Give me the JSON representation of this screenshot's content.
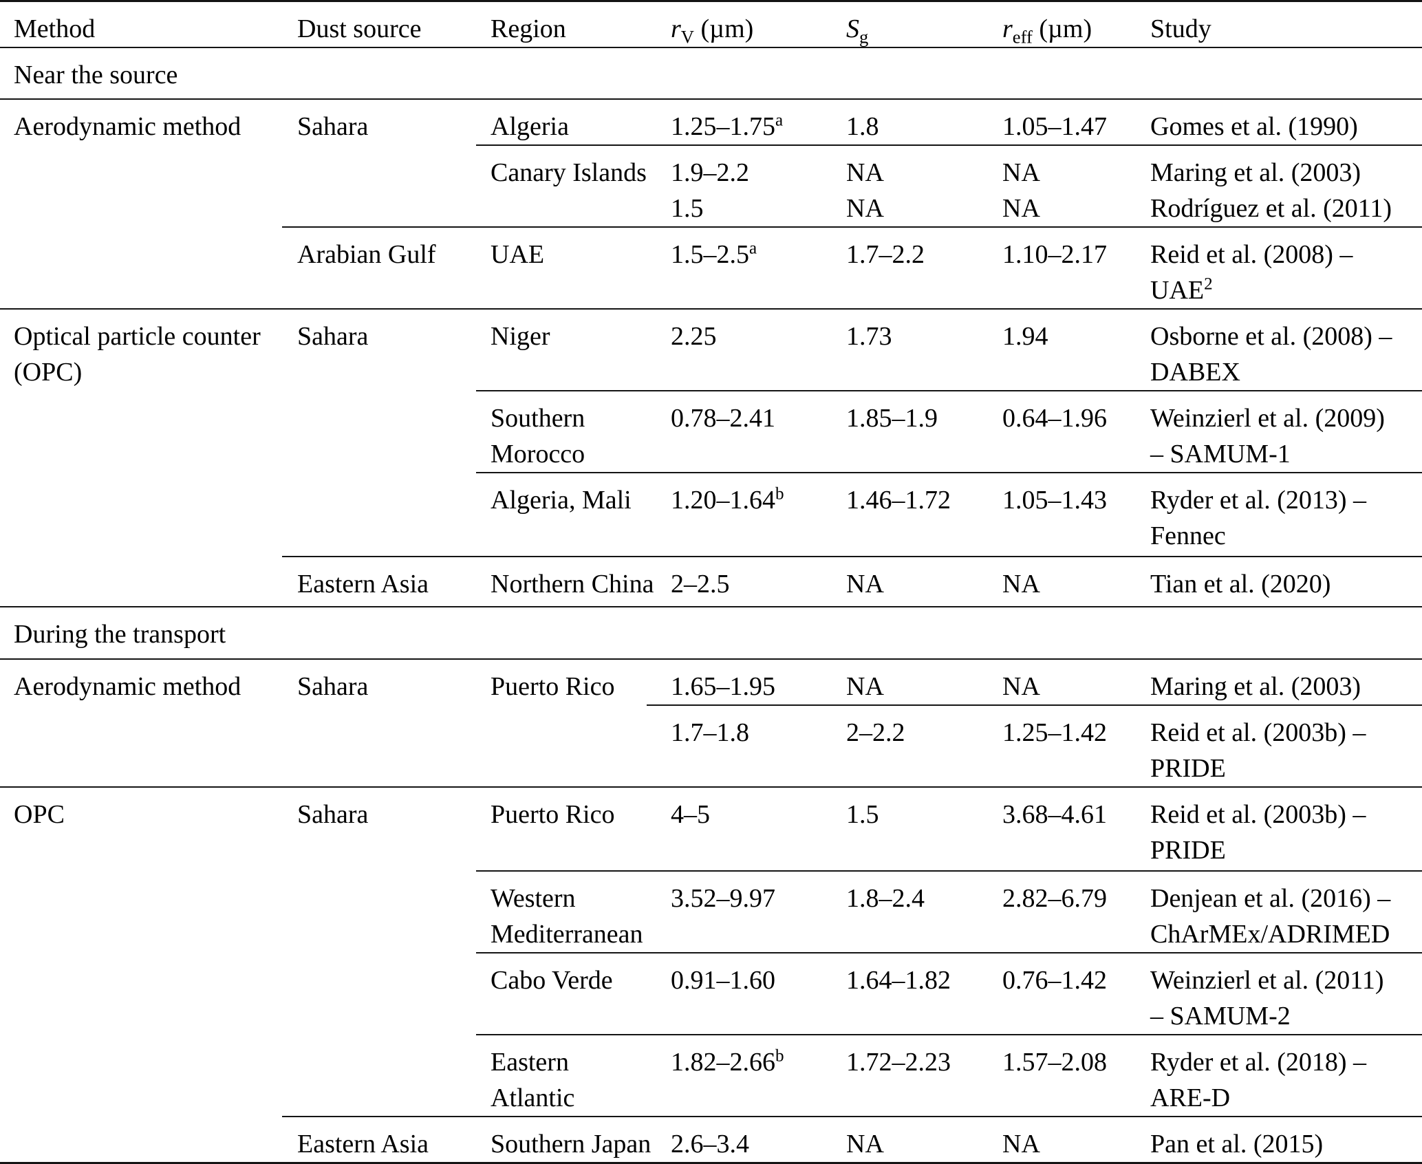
{
  "headers": {
    "method": "Method",
    "dust": "Dust source",
    "region": "Region",
    "rv_sym": "r",
    "rv_sub": "V",
    "rv_unit": " (µm)",
    "sg_sym": "S",
    "sg_sub": "g",
    "reff_sym": "r",
    "reff_sub": "eff",
    "reff_unit": " (µm)",
    "study": "Study"
  },
  "sections": {
    "near_the_source": "Near the source",
    "during_the_transport": "During the transport"
  },
  "rows": {
    "algeria": {
      "method": "Aerodynamic method",
      "dust": "Sahara",
      "region": "Algeria",
      "rv": "1.25–1.75",
      "rv_sup": "a",
      "sg": "1.8",
      "reff": "1.05–1.47",
      "study": "Gomes et al. (1990)"
    },
    "canary": {
      "region": "Canary Islands",
      "rv1": "1.9–2.2",
      "rv2": "1.5",
      "sg1": "NA",
      "sg2": "NA",
      "reff1": "NA",
      "reff2": "NA",
      "study1": "Maring et al. (2003)",
      "study2": "Rodríguez et al. (2011)"
    },
    "uae": {
      "dust": "Arabian Gulf",
      "region": "UAE",
      "rv": "1.5–2.5",
      "rv_sup": "a",
      "sg": "1.7–2.2",
      "reff": "1.10–2.17",
      "study1": "Reid et al. (2008) –",
      "study2": "UAE",
      "study2_sup": "2"
    },
    "niger": {
      "method1": "Optical particle counter",
      "method2": "(OPC)",
      "dust": "Sahara",
      "region": "Niger",
      "rv": "2.25",
      "sg": "1.73",
      "reff": "1.94",
      "study1": "Osborne et al. (2008) –",
      "study2": "DABEX"
    },
    "morocco": {
      "region1": "Southern",
      "region2": "Morocco",
      "rv": "0.78–2.41",
      "sg": "1.85–1.9",
      "reff": "0.64–1.96",
      "study1": "Weinzierl et al. (2009)",
      "study2": "– SAMUM-1"
    },
    "mali": {
      "region": "Algeria, Mali",
      "rv": "1.20–1.64",
      "rv_sup": "b",
      "sg": "1.46–1.72",
      "reff": "1.05–1.43",
      "study1": "Ryder et al. (2013) –",
      "study2": "Fennec"
    },
    "nchina": {
      "dust": "Eastern Asia",
      "region": "Northern China",
      "rv": "2–2.5",
      "sg": "NA",
      "reff": "NA",
      "study": "Tian et al. (2020)"
    },
    "pr_maring": {
      "method": "Aerodynamic method",
      "dust": "Sahara",
      "region": "Puerto Rico",
      "rv": "1.65–1.95",
      "sg": "NA",
      "reff": "NA",
      "study": "Maring et al. (2003)"
    },
    "pr_pride": {
      "rv": "1.7–1.8",
      "sg": "2–2.2",
      "reff": "1.25–1.42",
      "study1": "Reid et al. (2003b) –",
      "study2": "PRIDE"
    },
    "pr_opc": {
      "method": "OPC",
      "dust": "Sahara",
      "region": "Puerto Rico",
      "rv": "4–5",
      "sg": "1.5",
      "reff": "3.68–4.61",
      "study1": "Reid et al. (2003b) –",
      "study2": "PRIDE"
    },
    "wmed": {
      "region1": "Western",
      "region2": "Mediterranean",
      "rv": "3.52–9.97",
      "sg": "1.8–2.4",
      "reff": "2.82–6.79",
      "study1": "Denjean et al. (2016) –",
      "study2": "ChArMEx/ADRIMED"
    },
    "cabo": {
      "region": "Cabo Verde",
      "rv": "0.91–1.60",
      "sg": "1.64–1.82",
      "reff": "0.76–1.42",
      "study1": "Weinzierl et al. (2011)",
      "study2": "– SAMUM-2"
    },
    "eatl": {
      "region1": "Eastern",
      "region2": "Atlantic",
      "rv": "1.82–2.66",
      "rv_sup": "b",
      "sg": "1.72–2.23",
      "reff": "1.57–2.08",
      "study1": "Ryder et al. (2018) –",
      "study2": "ARE-D"
    },
    "sjapan": {
      "dust": "Eastern Asia",
      "region": "Southern Japan",
      "rv": "2.6–3.4",
      "sg": "NA",
      "reff": "NA",
      "study": "Pan et al. (2015)"
    }
  }
}
